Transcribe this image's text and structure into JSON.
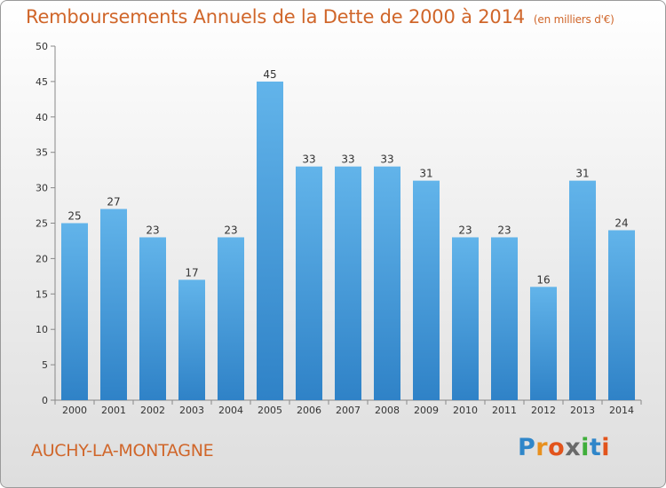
{
  "header": {
    "title": "Remboursements Annuels de la Dette de 2000 à 2014",
    "subtitle": "(en milliers d'€)"
  },
  "footer": {
    "town": "AUCHY-LA-MONTAGNE",
    "brand": "Proxiti",
    "brand_letters": [
      "P",
      "r",
      "o",
      "x",
      "i",
      "t",
      "i"
    ],
    "brand_colors": [
      "#2f86c9",
      "#e8901e",
      "#e2541c",
      "#6a6a6a",
      "#3fae3a",
      "#2f86c9",
      "#e2541c"
    ]
  },
  "colors": {
    "bar_light": "#62b4ea",
    "bar_dark": "#2f82c7",
    "accent": "#d0662a"
  },
  "chart_data": {
    "type": "bar",
    "title": "Remboursements Annuels de la Dette de 2000 à 2014",
    "subtitle": "(en milliers d'€)",
    "categories": [
      "2000",
      "2001",
      "2002",
      "2003",
      "2004",
      "2005",
      "2006",
      "2007",
      "2008",
      "2009",
      "2010",
      "2011",
      "2012",
      "2013",
      "2014"
    ],
    "values": [
      25,
      27,
      23,
      17,
      23,
      45,
      33,
      33,
      33,
      31,
      23,
      23,
      16,
      31,
      24
    ],
    "ylim": [
      0,
      50
    ],
    "yticks": [
      0,
      5,
      10,
      15,
      20,
      25,
      30,
      35,
      40,
      45,
      50
    ],
    "grid": false,
    "legend": "none"
  }
}
